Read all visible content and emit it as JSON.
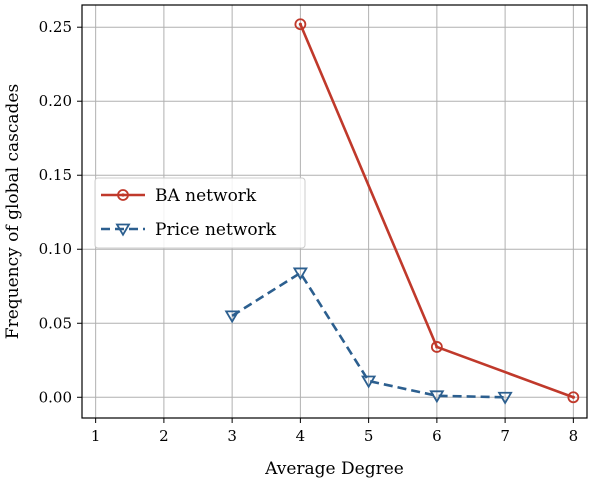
{
  "chart_data": {
    "type": "line",
    "xlabel": "Average Degree",
    "ylabel": "Frequency of global cascades",
    "xlim": [
      0.8,
      8.2
    ],
    "ylim": [
      -0.014,
      0.265
    ],
    "xticks": [
      1,
      2,
      3,
      4,
      5,
      6,
      7,
      8
    ],
    "yticks": [
      0.0,
      0.05,
      0.1,
      0.15,
      0.2,
      0.25
    ],
    "ytick_labels": [
      "0.00",
      "0.05",
      "0.10",
      "0.15",
      "0.20",
      "0.25"
    ],
    "grid": true,
    "legend_position": "center-left",
    "series": [
      {
        "name": "BA network",
        "color": "#c0392b",
        "line_style": "solid",
        "marker": "circle",
        "x": [
          4,
          6,
          8
        ],
        "y": [
          0.252,
          0.034,
          0.0
        ]
      },
      {
        "name": "Price network",
        "color": "#2c5f8f",
        "line_style": "dashed",
        "marker": "triangle-down",
        "x": [
          3,
          4,
          5,
          6,
          7
        ],
        "y": [
          0.055,
          0.084,
          0.011,
          0.001,
          0.0
        ]
      }
    ]
  }
}
